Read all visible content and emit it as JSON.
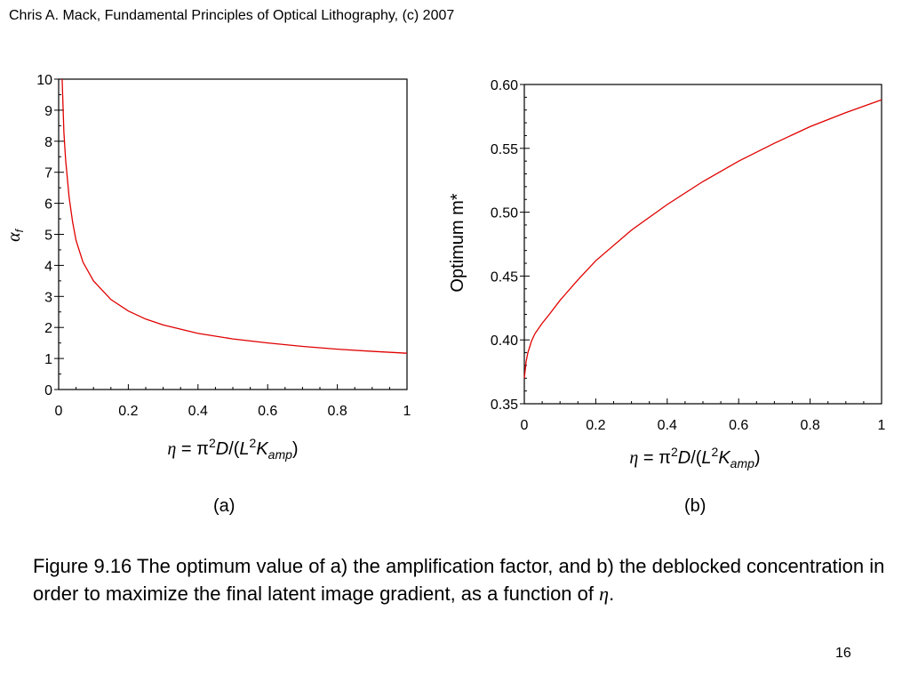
{
  "header": "Chris A. Mack, Fundamental Principles of Optical Lithography, (c) 2007",
  "panels": {
    "a_label": "(a)",
    "b_label": "(b)"
  },
  "caption": {
    "text": "Figure 9.16  The optimum value of a) the amplification factor, and b) the deblocked concentration in order to maximize the final latent image gradient, as a function of",
    "symbol": "η",
    "end": "."
  },
  "slide_number": "16",
  "chart_data": [
    {
      "type": "line",
      "panel": "(a)",
      "xlabel": "η = π²D/(L²K_amp)",
      "ylabel": "α_f",
      "xlim": [
        0,
        1
      ],
      "ylim": [
        0,
        10
      ],
      "xticks": [
        "0",
        "0.2",
        "0.4",
        "0.6",
        "0.8",
        "1"
      ],
      "yticks": [
        "0",
        "1",
        "2",
        "3",
        "4",
        "5",
        "6",
        "7",
        "8",
        "9",
        "10"
      ],
      "color": "#e00000",
      "series": [
        {
          "x": [
            0.01,
            0.015,
            0.02,
            0.03,
            0.04,
            0.05,
            0.07,
            0.1,
            0.15,
            0.2,
            0.25,
            0.3,
            0.4,
            0.5,
            0.6,
            0.7,
            0.8,
            0.9,
            1.0
          ],
          "values": [
            10.0,
            8.3,
            7.4,
            6.2,
            5.4,
            4.8,
            4.1,
            3.5,
            2.9,
            2.53,
            2.27,
            2.08,
            1.81,
            1.63,
            1.5,
            1.39,
            1.3,
            1.23,
            1.17
          ]
        }
      ]
    },
    {
      "type": "line",
      "panel": "(b)",
      "xlabel": "η = π²D/(L²K_amp)",
      "ylabel": "Optimum m*",
      "xlim": [
        0,
        1
      ],
      "ylim": [
        0.35,
        0.6
      ],
      "xticks": [
        "0",
        "0.2",
        "0.4",
        "0.6",
        "0.8",
        "1"
      ],
      "yticks": [
        "0.35",
        "0.40",
        "0.45",
        "0.50",
        "0.55",
        "0.60"
      ],
      "color": "#e00000",
      "series": [
        {
          "x": [
            0.0,
            0.005,
            0.01,
            0.02,
            0.03,
            0.05,
            0.07,
            0.1,
            0.15,
            0.2,
            0.3,
            0.4,
            0.5,
            0.6,
            0.7,
            0.8,
            0.9,
            1.0
          ],
          "values": [
            0.37,
            0.383,
            0.39,
            0.399,
            0.405,
            0.413,
            0.42,
            0.431,
            0.447,
            0.462,
            0.486,
            0.506,
            0.524,
            0.54,
            0.554,
            0.567,
            0.578,
            0.588
          ]
        }
      ]
    }
  ]
}
